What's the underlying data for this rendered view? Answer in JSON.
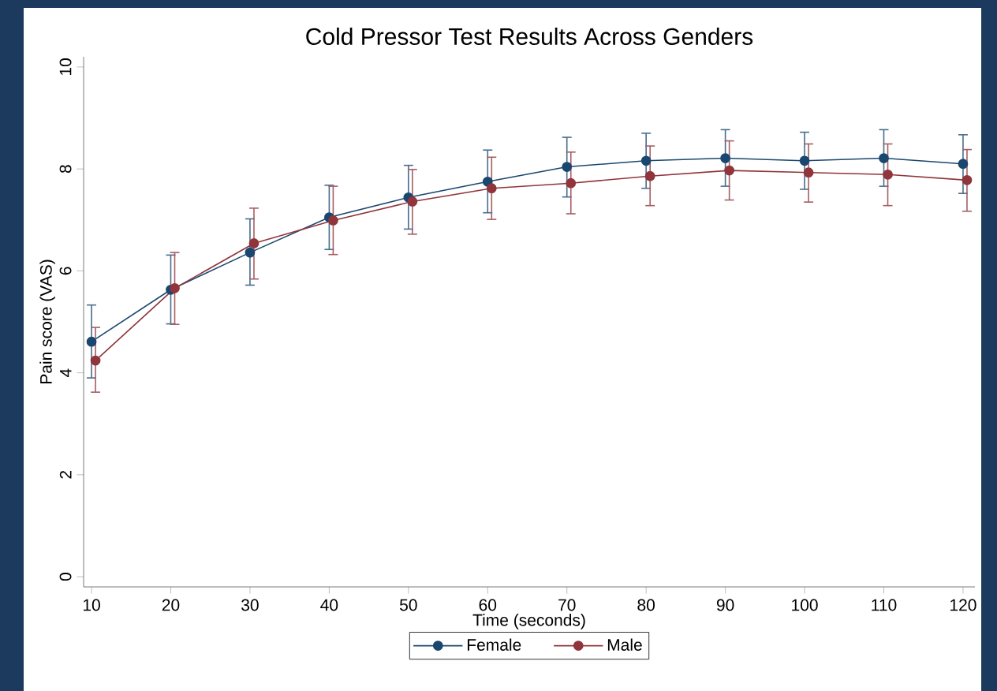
{
  "chart_data": {
    "type": "line",
    "title": "Cold Pressor Test Results Across Genders",
    "xlabel": "Time (seconds)",
    "ylabel": "Pain score (VAS)",
    "x": [
      10,
      20,
      30,
      40,
      50,
      60,
      70,
      80,
      90,
      100,
      110,
      120
    ],
    "series": [
      {
        "name": "Female",
        "color": "#1a476f",
        "values": [
          4.61,
          5.63,
          6.36,
          7.05,
          7.44,
          7.75,
          8.04,
          8.16,
          8.21,
          8.16,
          8.21,
          8.1
        ],
        "errors": [
          [
            3.9,
            5.33
          ],
          [
            4.96,
            6.31
          ],
          [
            5.72,
            7.02
          ],
          [
            6.42,
            7.68
          ],
          [
            6.82,
            8.07
          ],
          [
            7.14,
            8.37
          ],
          [
            7.45,
            8.62
          ],
          [
            7.62,
            8.7
          ],
          [
            7.66,
            8.77
          ],
          [
            7.6,
            8.72
          ],
          [
            7.66,
            8.77
          ],
          [
            7.52,
            8.67
          ]
        ]
      },
      {
        "name": "Male",
        "color": "#90353b",
        "x": [
          10.5,
          20.5,
          30.5,
          40.5,
          50.5,
          60.5,
          70.5,
          80.5,
          90.5,
          100.5,
          110.5,
          120.5
        ],
        "values": [
          4.24,
          5.66,
          6.54,
          6.99,
          7.36,
          7.62,
          7.72,
          7.86,
          7.97,
          7.93,
          7.89,
          7.78
        ],
        "errors": [
          [
            3.62,
            4.89
          ],
          [
            4.95,
            6.36
          ],
          [
            5.84,
            7.23
          ],
          [
            6.32,
            7.66
          ],
          [
            6.72,
            7.99
          ],
          [
            7.01,
            8.23
          ],
          [
            7.12,
            8.33
          ],
          [
            7.28,
            8.45
          ],
          [
            7.39,
            8.55
          ],
          [
            7.35,
            8.49
          ],
          [
            7.28,
            8.49
          ],
          [
            7.17,
            8.38
          ]
        ]
      }
    ],
    "xlim": [
      9,
      121.5
    ],
    "ylim": [
      -0.2,
      10.2
    ],
    "xticks": [
      10,
      20,
      30,
      40,
      50,
      60,
      70,
      80,
      90,
      100,
      110,
      120
    ],
    "yticks": [
      0,
      2,
      4,
      6,
      8,
      10
    ],
    "marker": "circle",
    "line_style": "solid",
    "grid": false,
    "legend": "bottom"
  }
}
